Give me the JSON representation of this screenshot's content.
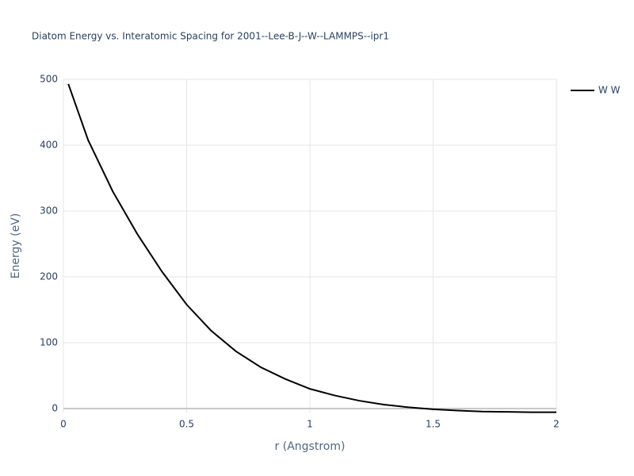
{
  "chart_data": {
    "type": "line",
    "title": "Diatom Energy vs. Interatomic Spacing for 2001--Lee-B-J--W--LAMMPS--ipr1",
    "x_label": "r (Angstrom)",
    "y_label": "Energy (eV)",
    "x": [
      0.02,
      0.1,
      0.2,
      0.3,
      0.4,
      0.5,
      0.6,
      0.7,
      0.8,
      0.9,
      1.0,
      1.1,
      1.2,
      1.3,
      1.4,
      1.5,
      1.6,
      1.7,
      1.8,
      1.9,
      2.0
    ],
    "series": [
      {
        "name": "W W",
        "color": "#000000",
        "values": [
          493,
          408,
          330,
          265,
          208,
          158,
          118,
          87,
          63,
          45,
          30,
          20,
          12,
          6,
          2,
          -1,
          -3,
          -4.5,
          -5,
          -5.5,
          -5.5
        ]
      }
    ],
    "xlim": [
      0,
      2
    ],
    "ylim": [
      -6,
      500
    ],
    "xticks": [
      0,
      0.5,
      1,
      1.5,
      2
    ],
    "yticks": [
      0,
      100,
      200,
      300,
      400,
      500
    ],
    "grid": true,
    "zeroline": true,
    "legend": "right"
  }
}
